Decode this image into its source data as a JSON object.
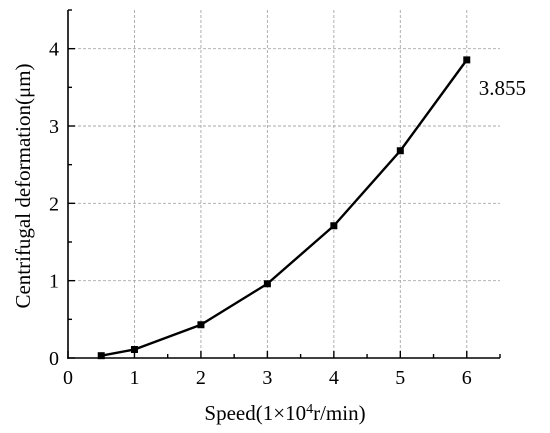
{
  "chart_data": {
    "type": "line",
    "xlabel_prefix": "Speed(1×10",
    "xlabel_sup": "4",
    "xlabel_suffix": "r/min)",
    "ylabel": "Centrifugal deformation(μm)",
    "xlim": [
      0,
      6.5
    ],
    "ylim": [
      0,
      4.5
    ],
    "xticks": [
      0,
      1,
      2,
      3,
      4,
      5,
      6
    ],
    "yticks": [
      0,
      1,
      2,
      3,
      4
    ],
    "grid": true,
    "marker": "square",
    "line_color": "#000000",
    "series": [
      {
        "x": [
          0.5,
          1,
          2,
          3,
          4,
          5,
          6
        ],
        "y": [
          0.03,
          0.11,
          0.43,
          0.96,
          1.71,
          2.68,
          3.855
        ]
      }
    ],
    "annotations": [
      {
        "x": 6,
        "y": 3.855,
        "text": "3.855"
      }
    ]
  }
}
